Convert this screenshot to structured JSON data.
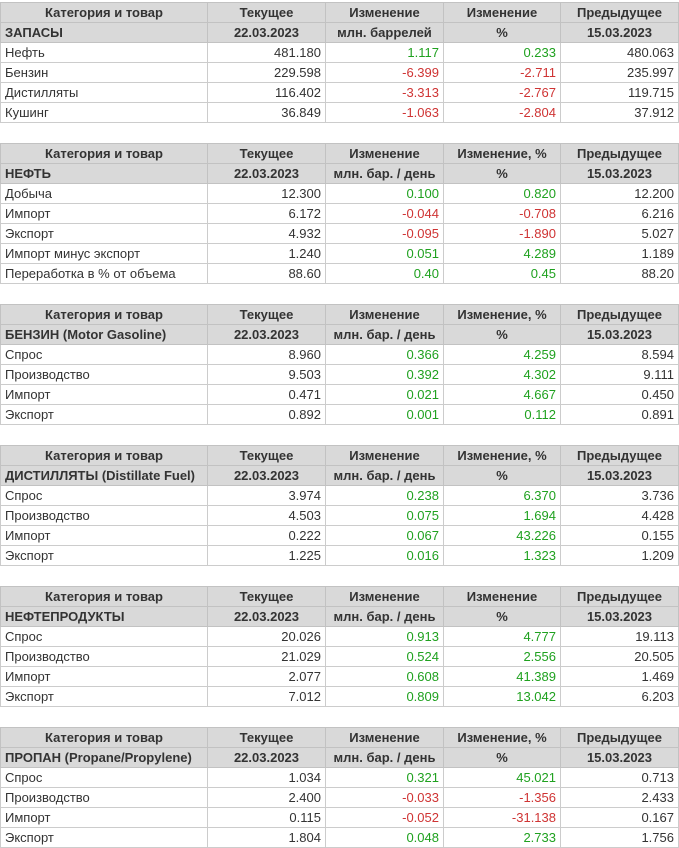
{
  "colors": {
    "positive": "#1fa11f",
    "negative": "#cf3434",
    "header_bg": "#d9d9d9",
    "header_text": "#333333"
  },
  "tables": [
    {
      "headers": [
        "Категория и товар",
        "Текущее",
        "Изменение",
        "Изменение",
        "Предыдущее"
      ],
      "subheaders": [
        "ЗАПАСЫ",
        "22.03.2023",
        "млн. баррелей",
        "%",
        "15.03.2023"
      ],
      "rows": [
        {
          "label": "Нефть",
          "current": "481.180",
          "change": "1.117",
          "change_pct": "0.233",
          "previous": "480.063"
        },
        {
          "label": "Бензин",
          "current": "229.598",
          "change": "-6.399",
          "change_pct": "-2.711",
          "previous": "235.997"
        },
        {
          "label": "Дистилляты",
          "current": "116.402",
          "change": "-3.313",
          "change_pct": "-2.767",
          "previous": "119.715"
        },
        {
          "label": "Кушинг",
          "current": "36.849",
          "change": "-1.063",
          "change_pct": "-2.804",
          "previous": "37.912"
        }
      ]
    },
    {
      "headers": [
        "Категория и товар",
        "Текущее",
        "Изменение",
        "Изменение, %",
        "Предыдущее"
      ],
      "subheaders": [
        "НЕФТЬ",
        "22.03.2023",
        "млн. бар. / день",
        "%",
        "15.03.2023"
      ],
      "rows": [
        {
          "label": "Добыча",
          "current": "12.300",
          "change": "0.100",
          "change_pct": "0.820",
          "previous": "12.200"
        },
        {
          "label": "Импорт",
          "current": "6.172",
          "change": "-0.044",
          "change_pct": "-0.708",
          "previous": "6.216"
        },
        {
          "label": "Экспорт",
          "current": "4.932",
          "change": "-0.095",
          "change_pct": "-1.890",
          "previous": "5.027"
        },
        {
          "label": "Импорт минус экспорт",
          "current": "1.240",
          "change": "0.051",
          "change_pct": "4.289",
          "previous": "1.189"
        },
        {
          "label": "Переработка в % от объема",
          "current": "88.60",
          "change": "0.40",
          "change_pct": "0.45",
          "previous": "88.20"
        }
      ]
    },
    {
      "headers": [
        "Категория и товар",
        "Текущее",
        "Изменение",
        "Изменение, %",
        "Предыдущее"
      ],
      "subheaders": [
        "БЕНЗИН (Motor Gasoline)",
        "22.03.2023",
        "млн. бар. / день",
        "%",
        "15.03.2023"
      ],
      "rows": [
        {
          "label": "Спрос",
          "current": "8.960",
          "change": "0.366",
          "change_pct": "4.259",
          "previous": "8.594"
        },
        {
          "label": "Производство",
          "current": "9.503",
          "change": "0.392",
          "change_pct": "4.302",
          "previous": "9.111"
        },
        {
          "label": "Импорт",
          "current": "0.471",
          "change": "0.021",
          "change_pct": "4.667",
          "previous": "0.450"
        },
        {
          "label": "Экспорт",
          "current": "0.892",
          "change": "0.001",
          "change_pct": "0.112",
          "previous": "0.891"
        }
      ]
    },
    {
      "headers": [
        "Категория и товар",
        "Текущее",
        "Изменение",
        "Изменение, %",
        "Предыдущее"
      ],
      "subheaders": [
        "ДИСТИЛЛЯТЫ (Distillate Fuel)",
        "22.03.2023",
        "млн. бар. / день",
        "%",
        "15.03.2023"
      ],
      "rows": [
        {
          "label": "Спрос",
          "current": "3.974",
          "change": "0.238",
          "change_pct": "6.370",
          "previous": "3.736"
        },
        {
          "label": "Производство",
          "current": "4.503",
          "change": "0.075",
          "change_pct": "1.694",
          "previous": "4.428"
        },
        {
          "label": "Импорт",
          "current": "0.222",
          "change": "0.067",
          "change_pct": "43.226",
          "previous": "0.155"
        },
        {
          "label": "Экспорт",
          "current": "1.225",
          "change": "0.016",
          "change_pct": "1.323",
          "previous": "1.209"
        }
      ]
    },
    {
      "headers": [
        "Категория и товар",
        "Текущее",
        "Изменение",
        "Изменение",
        "Предыдущее"
      ],
      "subheaders": [
        "НЕФТЕПРОДУКТЫ",
        "22.03.2023",
        "млн. бар. / день",
        "%",
        "15.03.2023"
      ],
      "rows": [
        {
          "label": "Спрос",
          "current": "20.026",
          "change": "0.913",
          "change_pct": "4.777",
          "previous": "19.113"
        },
        {
          "label": "Производство",
          "current": "21.029",
          "change": "0.524",
          "change_pct": "2.556",
          "previous": "20.505"
        },
        {
          "label": "Импорт",
          "current": "2.077",
          "change": "0.608",
          "change_pct": "41.389",
          "previous": "1.469"
        },
        {
          "label": "Экспорт",
          "current": "7.012",
          "change": "0.809",
          "change_pct": "13.042",
          "previous": "6.203"
        }
      ]
    },
    {
      "headers": [
        "Категория и товар",
        "Текущее",
        "Изменение",
        "Изменение, %",
        "Предыдущее"
      ],
      "subheaders": [
        "ПРОПАН (Propane/Propylene)",
        "22.03.2023",
        "млн. бар. / день",
        "%",
        "15.03.2023"
      ],
      "rows": [
        {
          "label": "Спрос",
          "current": "1.034",
          "change": "0.321",
          "change_pct": "45.021",
          "previous": "0.713"
        },
        {
          "label": "Производство",
          "current": "2.400",
          "change": "-0.033",
          "change_pct": "-1.356",
          "previous": "2.433"
        },
        {
          "label": "Импорт",
          "current": "0.115",
          "change": "-0.052",
          "change_pct": "-31.138",
          "previous": "0.167"
        },
        {
          "label": "Экспорт",
          "current": "1.804",
          "change": "0.048",
          "change_pct": "2.733",
          "previous": "1.756"
        }
      ]
    }
  ]
}
